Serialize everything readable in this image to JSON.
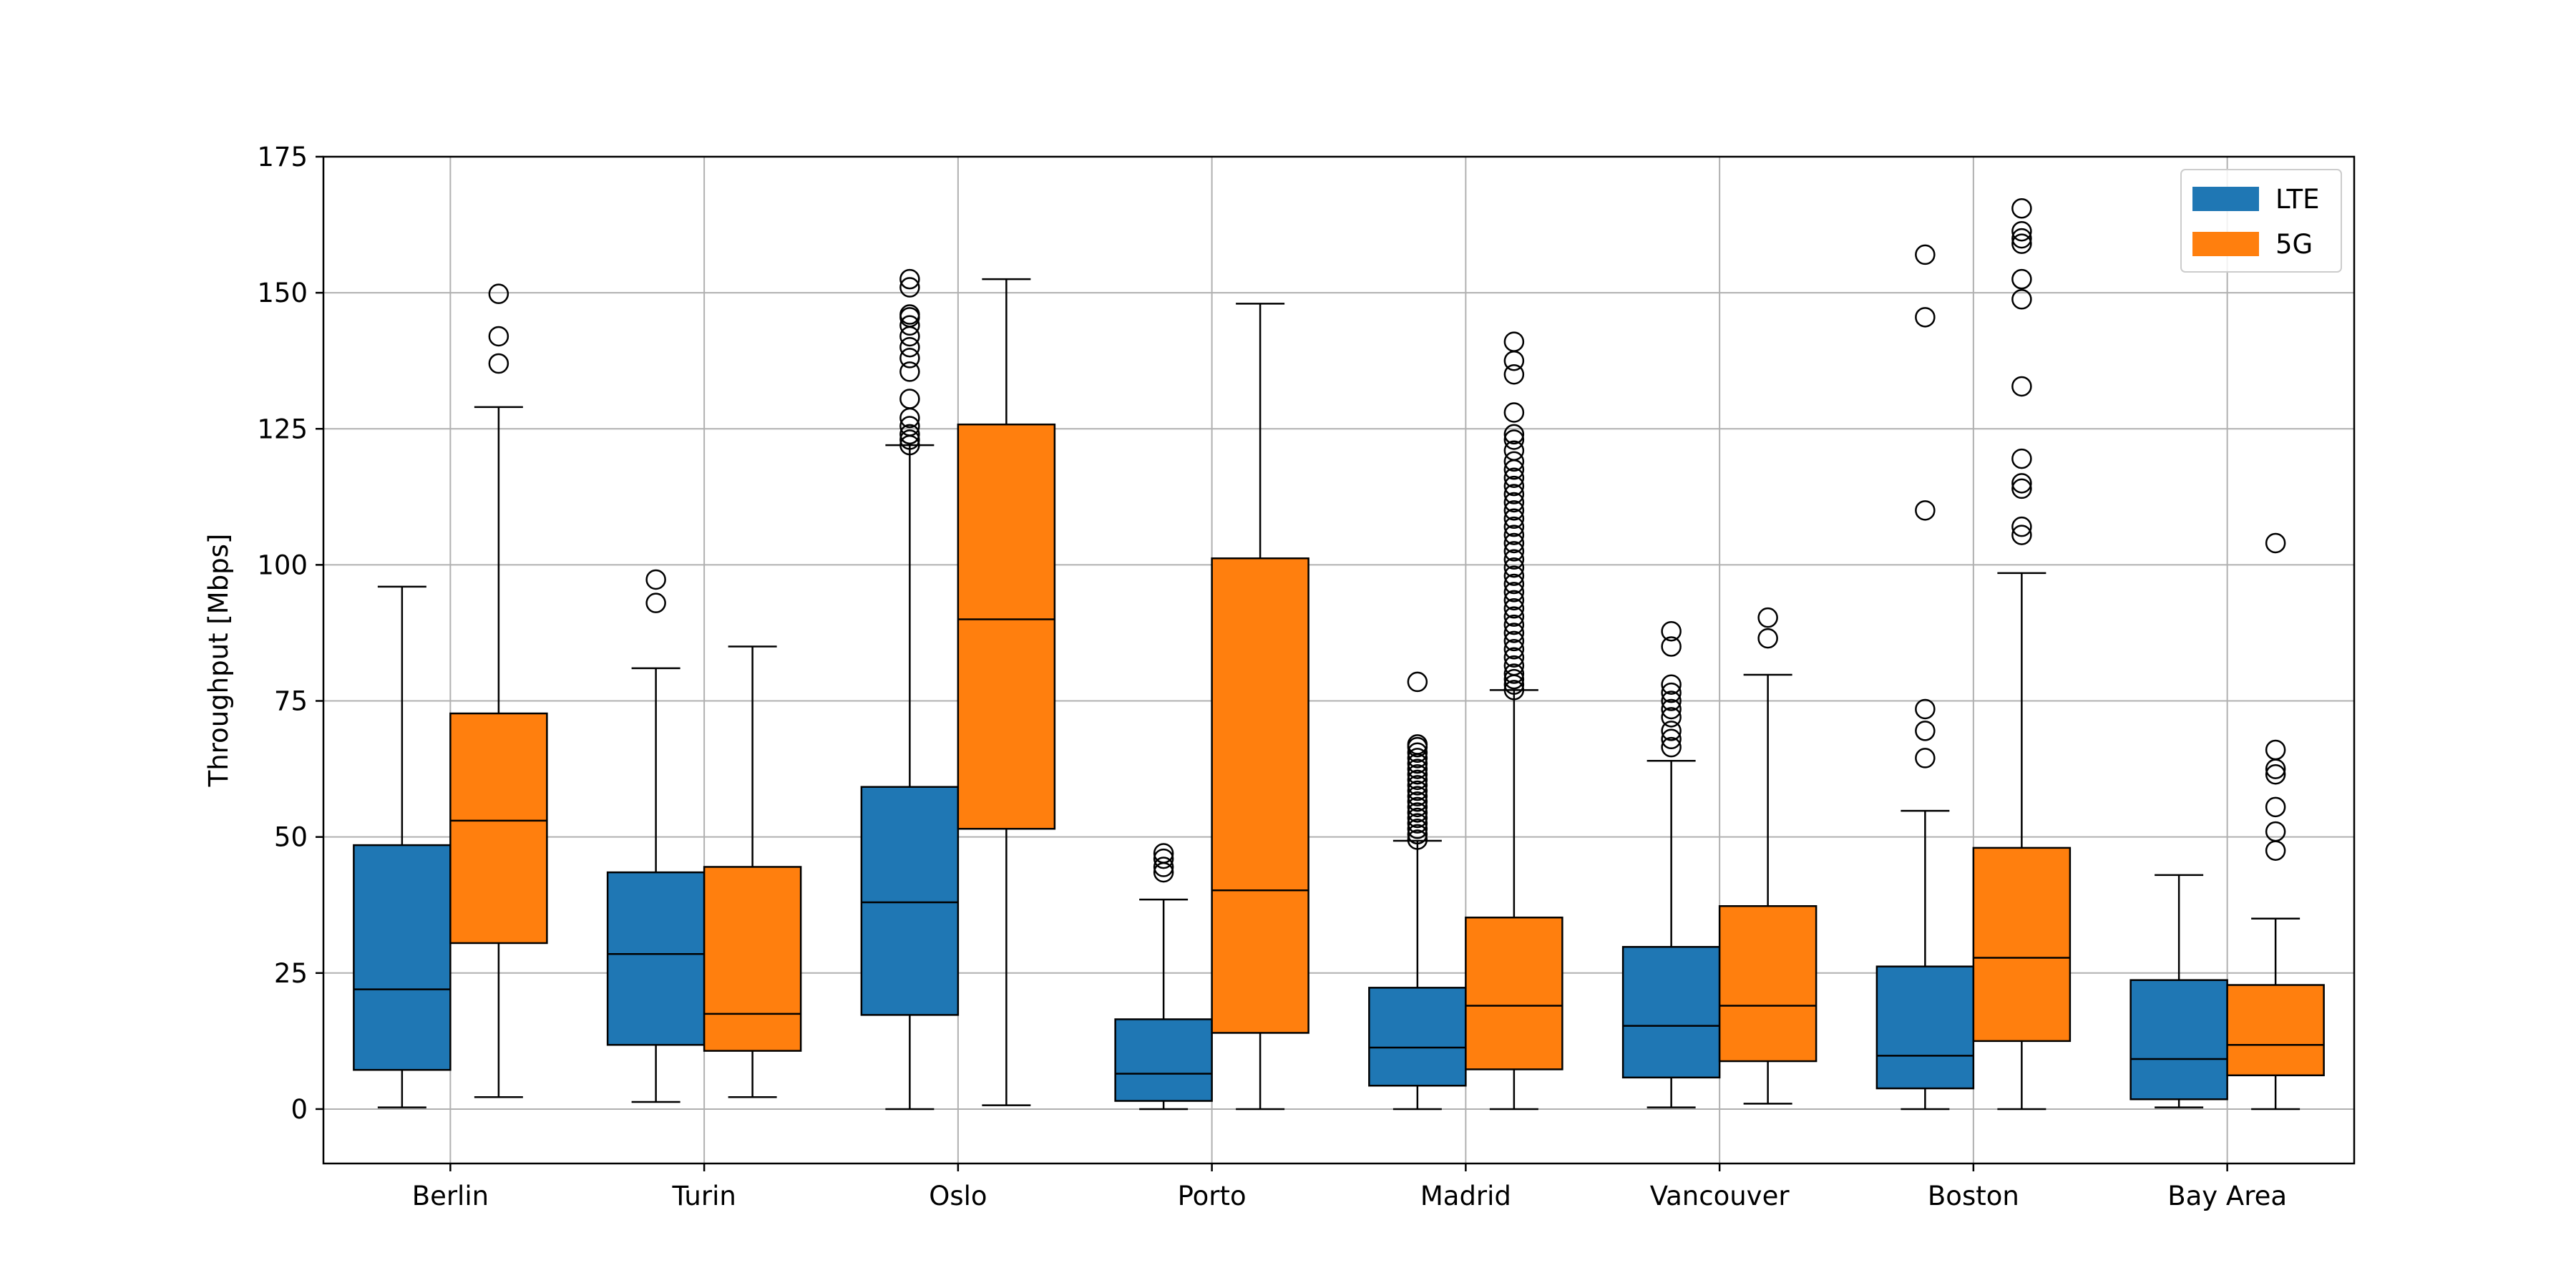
{
  "chart_data": {
    "type": "boxplot",
    "title": "",
    "xlabel": "",
    "ylabel": "Throughput [Mbps]",
    "ylim": [
      -10,
      175
    ],
    "yticks": [
      0,
      25,
      50,
      75,
      100,
      125,
      150,
      175
    ],
    "grid": true,
    "legend_position": "top-right",
    "categories": [
      "Berlin",
      "Turin",
      "Oslo",
      "Porto",
      "Madrid",
      "Vancouver",
      "Boston",
      "Bay Area"
    ],
    "series": [
      {
        "name": "LTE",
        "color": "#1f77b4",
        "boxes": [
          {
            "whisker_low": 0.3,
            "q1": 7.2,
            "median": 22,
            "q3": 48.5,
            "whisker_high": 96,
            "outliers": []
          },
          {
            "whisker_low": 1.3,
            "q1": 11.8,
            "median": 28.5,
            "q3": 43.5,
            "whisker_high": 81,
            "outliers": [
              93,
              97.3
            ]
          },
          {
            "whisker_low": 0,
            "q1": 17.3,
            "median": 38,
            "q3": 59.2,
            "whisker_high": 122,
            "outliers": [
              122,
              123,
              124,
              125.5,
              127,
              130.5,
              135.5,
              138,
              140,
              142,
              144,
              145.5,
              146,
              151,
              152.5
            ]
          },
          {
            "whisker_low": 0,
            "q1": 1.5,
            "median": 6.5,
            "q3": 16.5,
            "whisker_high": 38.5,
            "outliers": [
              43.5,
              44.5,
              46,
              47
            ]
          },
          {
            "whisker_low": 0,
            "q1": 4.3,
            "median": 11.3,
            "q3": 22.3,
            "whisker_high": 49.3,
            "outliers": [
              49.5,
              50.5,
              51.5,
              52.5,
              53.5,
              54.5,
              55.5,
              56.5,
              57.5,
              58.5,
              59.5,
              60.5,
              61.5,
              62.5,
              63.5,
              64.5,
              65.5,
              66.5,
              67,
              78.5
            ]
          },
          {
            "whisker_low": 0.3,
            "q1": 5.8,
            "median": 15.3,
            "q3": 29.8,
            "whisker_high": 64,
            "outliers": [
              66.5,
              68,
              69.5,
              72,
              73.5,
              75,
              76.5,
              78,
              85,
              87.8
            ]
          },
          {
            "whisker_low": 0,
            "q1": 3.8,
            "median": 9.8,
            "q3": 26.2,
            "whisker_high": 54.8,
            "outliers": [
              64.5,
              69.5,
              73.5,
              110,
              145.5,
              157
            ]
          },
          {
            "whisker_low": 0.3,
            "q1": 1.8,
            "median": 9.2,
            "q3": 23.7,
            "whisker_high": 43,
            "outliers": []
          }
        ]
      },
      {
        "name": "5G",
        "color": "#ff7f0e",
        "boxes": [
          {
            "whisker_low": 2.2,
            "q1": 30.5,
            "median": 53,
            "q3": 72.7,
            "whisker_high": 129,
            "outliers": [
              137,
              142,
              149.8
            ]
          },
          {
            "whisker_low": 2.2,
            "q1": 10.7,
            "median": 17.5,
            "q3": 44.5,
            "whisker_high": 85,
            "outliers": []
          },
          {
            "whisker_low": 0.7,
            "q1": 51.5,
            "median": 90,
            "q3": 125.8,
            "whisker_high": 152.5,
            "outliers": []
          },
          {
            "whisker_low": 0,
            "q1": 14,
            "median": 40.2,
            "q3": 101.2,
            "whisker_high": 148,
            "outliers": []
          },
          {
            "whisker_low": 0,
            "q1": 7.3,
            "median": 19,
            "q3": 35.2,
            "whisker_high": 77,
            "outliers": [
              77,
              78,
              79,
              80,
              81.5,
              83,
              84.5,
              86,
              87.5,
              89,
              90.5,
              92,
              93.5,
              95,
              96.5,
              98,
              99.5,
              101,
              102.5,
              104,
              105.5,
              107,
              108.5,
              110,
              111.5,
              113,
              114.5,
              116,
              117.5,
              119,
              121,
              123,
              124,
              128,
              135,
              137.5,
              141
            ]
          },
          {
            "whisker_low": 1,
            "q1": 8.8,
            "median": 19,
            "q3": 37.3,
            "whisker_high": 79.8,
            "outliers": [
              86.5,
              90.3
            ]
          },
          {
            "whisker_low": 0,
            "q1": 12.5,
            "median": 27.8,
            "q3": 48,
            "whisker_high": 98.5,
            "outliers": [
              105.5,
              107,
              114,
              115,
              119.5,
              132.8,
              148.8,
              152.5,
              159,
              160,
              161.3,
              165.5
            ]
          },
          {
            "whisker_low": 0,
            "q1": 6.2,
            "median": 11.8,
            "q3": 22.8,
            "whisker_high": 35,
            "outliers": [
              47.5,
              51,
              55.5,
              61.5,
              62.5,
              66,
              104
            ]
          }
        ]
      }
    ]
  }
}
